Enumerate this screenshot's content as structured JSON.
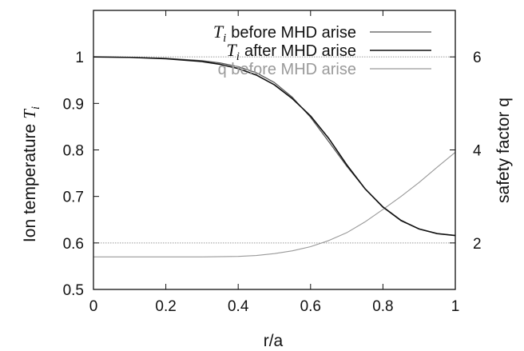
{
  "chart_data": {
    "type": "line",
    "title": "",
    "xlabel": "r/a",
    "ylabel_left": {
      "main": "Ion temperature",
      "symbol": "T",
      "subscript": "i"
    },
    "ylabel_right": "safety factor q",
    "xlim": [
      0,
      1
    ],
    "ylim_left": [
      0.5,
      1.1
    ],
    "ylim_right": [
      1,
      7
    ],
    "grid": false,
    "legend_position": "top-right",
    "x_ticks": [
      {
        "value": 0,
        "label": "0"
      },
      {
        "value": 0.2,
        "label": "0.2"
      },
      {
        "value": 0.4,
        "label": "0.4"
      },
      {
        "value": 0.6,
        "label": "0.6"
      },
      {
        "value": 0.8,
        "label": "0.8"
      },
      {
        "value": 1,
        "label": "1"
      }
    ],
    "y_left_ticks": [
      {
        "value": 0.5,
        "label": "0.5"
      },
      {
        "value": 0.6,
        "label": "0.6"
      },
      {
        "value": 0.7,
        "label": "0.7"
      },
      {
        "value": 0.8,
        "label": "0.8"
      },
      {
        "value": 0.9,
        "label": "0.9"
      },
      {
        "value": 1,
        "label": "1"
      }
    ],
    "y_right_ticks": [
      {
        "value": 2,
        "label": "2"
      },
      {
        "value": 4,
        "label": "4"
      },
      {
        "value": 6,
        "label": "6"
      }
    ],
    "reference_lines_right": [
      {
        "value": 2,
        "color": "#999999",
        "style": "dotted"
      },
      {
        "value": 6,
        "color": "#999999",
        "style": "dotted"
      }
    ],
    "series": [
      {
        "name": "before MHD arise",
        "name_symbol": "T",
        "name_subscript": "i",
        "axis": "left",
        "color": "#555555",
        "style": "solid",
        "x": [
          0,
          0.1,
          0.2,
          0.3,
          0.35,
          0.4,
          0.45,
          0.5,
          0.55,
          0.6,
          0.65,
          0.7,
          0.75,
          0.8,
          0.85,
          0.9,
          0.95,
          1.0
        ],
        "y": [
          1.0,
          0.999,
          0.997,
          0.992,
          0.987,
          0.979,
          0.966,
          0.945,
          0.913,
          0.87,
          0.818,
          0.765,
          0.717,
          0.678,
          0.649,
          0.63,
          0.62,
          0.616
        ]
      },
      {
        "name": "after MHD arise",
        "name_symbol": "T",
        "name_subscript": "i",
        "axis": "left",
        "color": "#111111",
        "style": "solid",
        "x": [
          0,
          0.1,
          0.2,
          0.3,
          0.35,
          0.4,
          0.45,
          0.5,
          0.55,
          0.6,
          0.65,
          0.7,
          0.75,
          0.8,
          0.85,
          0.9,
          0.95,
          1.0
        ],
        "y": [
          1.0,
          0.999,
          0.996,
          0.99,
          0.984,
          0.975,
          0.961,
          0.94,
          0.91,
          0.873,
          0.825,
          0.768,
          0.717,
          0.677,
          0.648,
          0.63,
          0.62,
          0.616
        ]
      },
      {
        "name": "q before MHD arise",
        "axis": "right",
        "color": "#999999",
        "style": "solid",
        "x": [
          0,
          0.1,
          0.2,
          0.3,
          0.4,
          0.45,
          0.5,
          0.55,
          0.6,
          0.65,
          0.7,
          0.75,
          0.8,
          0.85,
          0.9,
          0.95,
          1.0
        ],
        "y": [
          1.7,
          1.7,
          1.7,
          1.7,
          1.71,
          1.73,
          1.77,
          1.83,
          1.92,
          2.05,
          2.22,
          2.45,
          2.72,
          3.0,
          3.3,
          3.63,
          3.95
        ]
      }
    ]
  }
}
